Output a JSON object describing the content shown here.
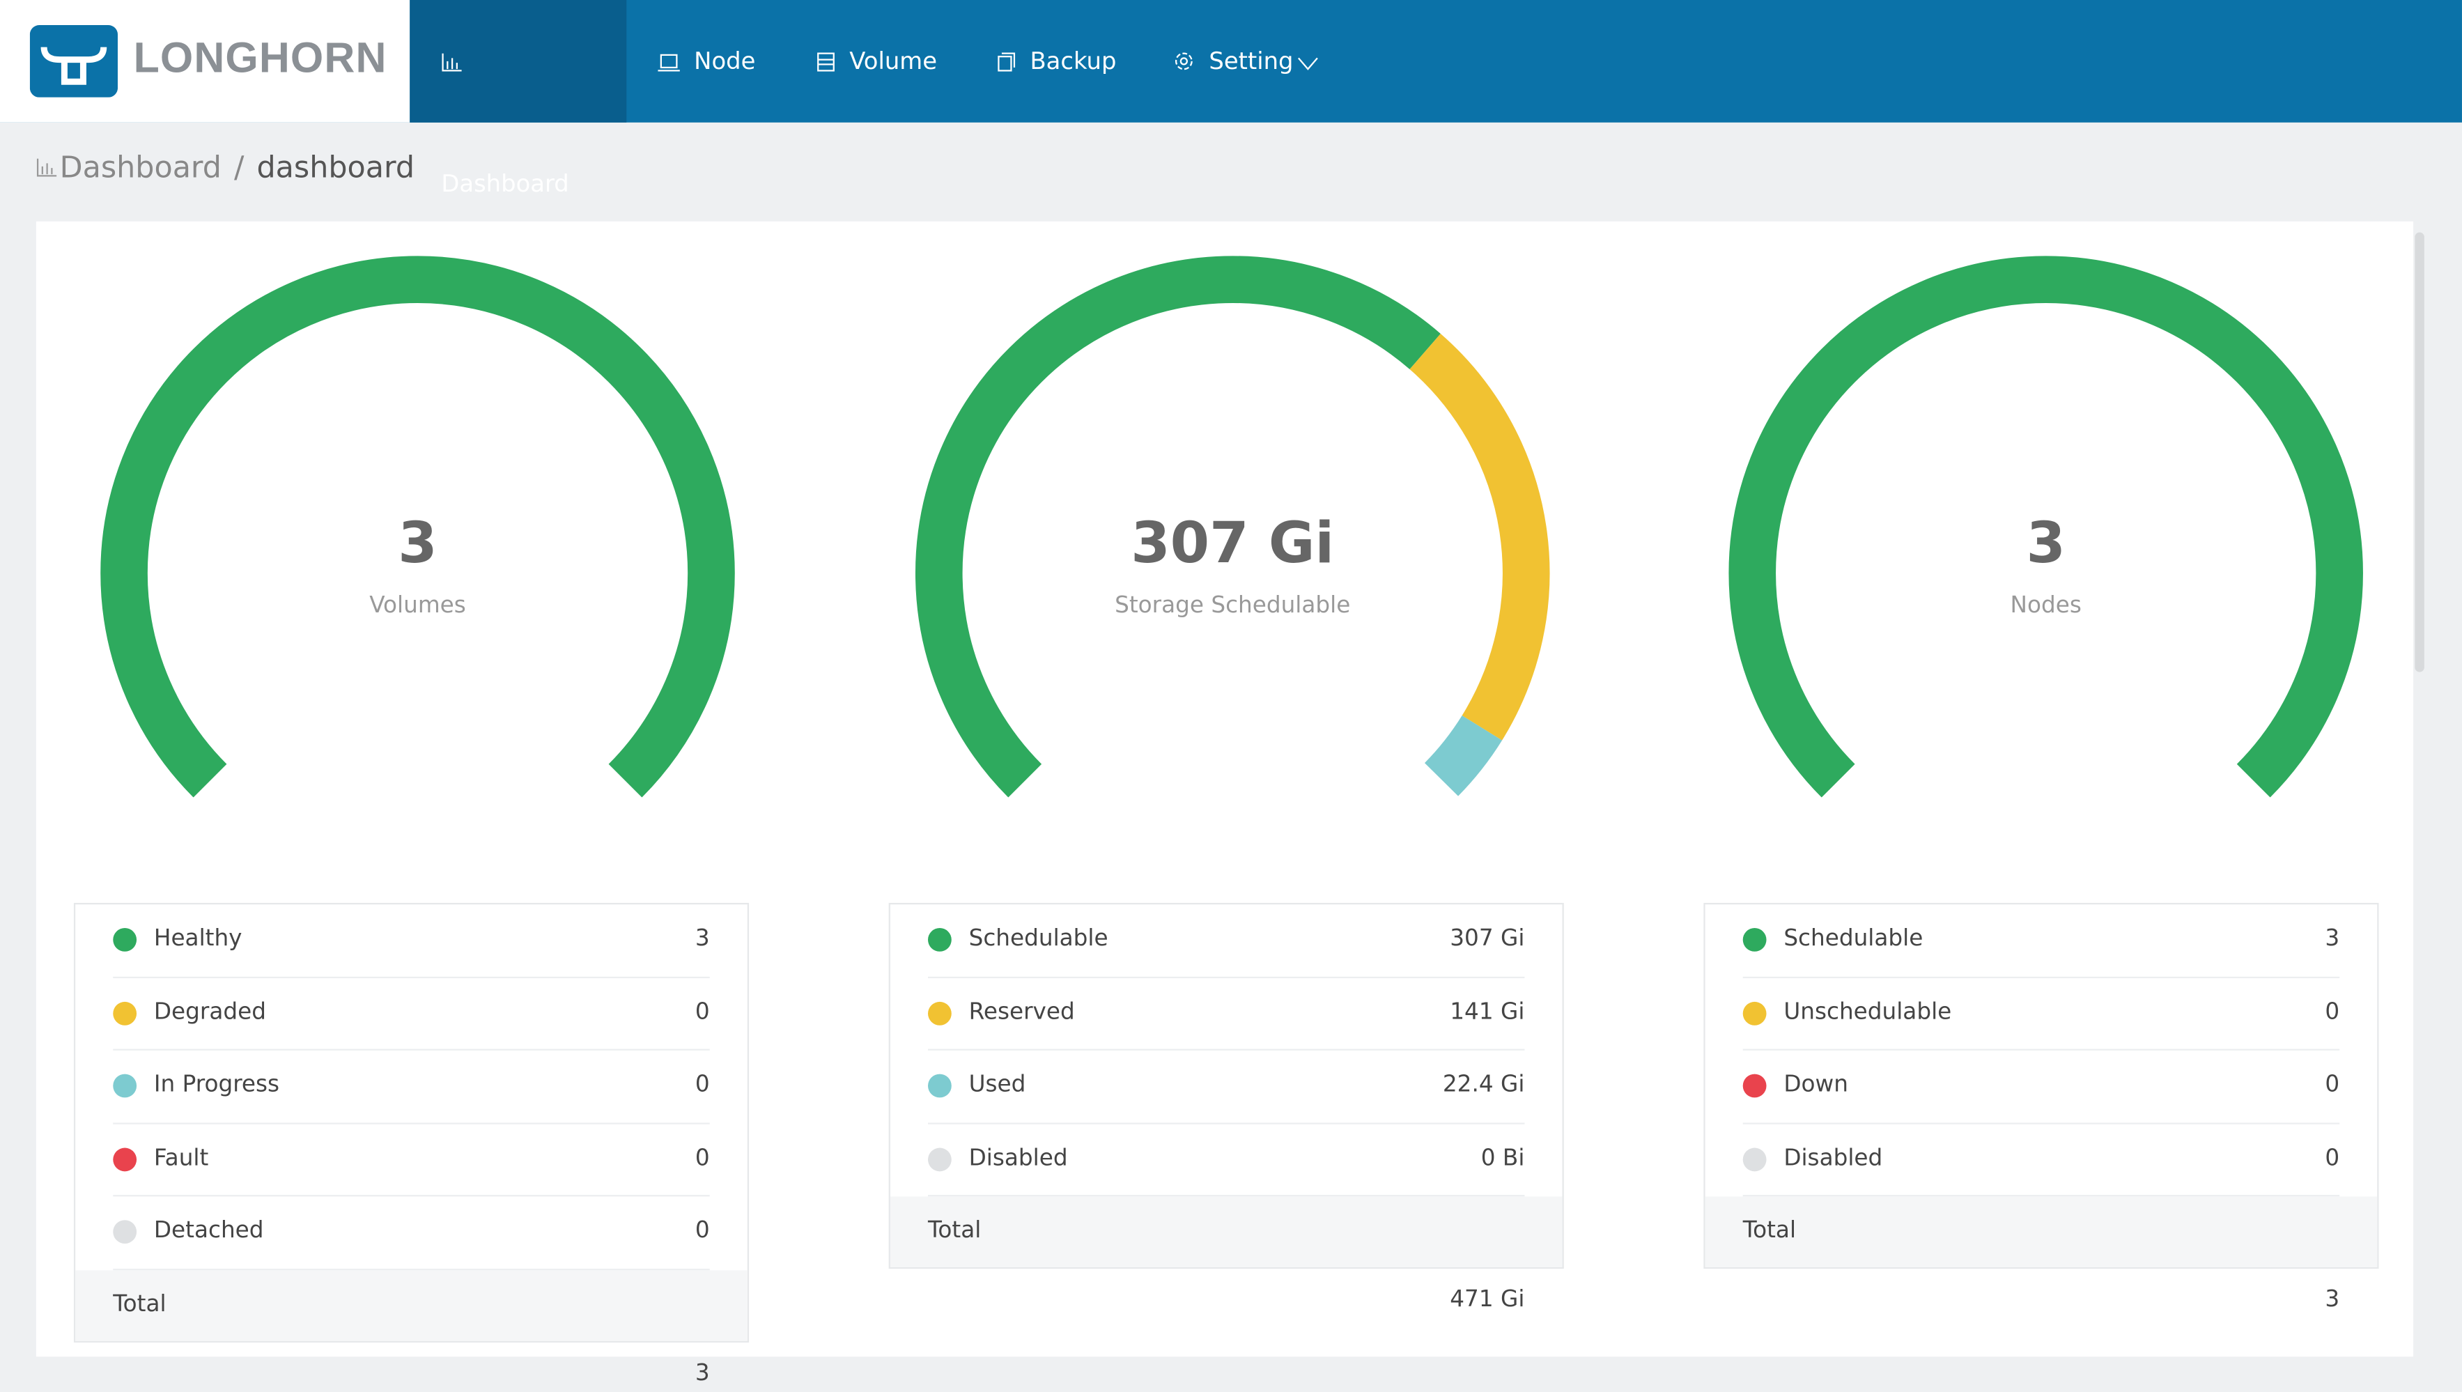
{
  "nav": {
    "brand": "LONGHORN",
    "items": [
      "Dashboard",
      "Node",
      "Volume",
      "Backup",
      "Setting"
    ]
  },
  "breadcrumb": [
    "Dashboard",
    "/",
    "dashboard"
  ],
  "panels": [
    {
      "value": "3",
      "label": "Volumes",
      "rows": [
        {
          "name": "Healthy",
          "value": "3",
          "color": "#2eaa5e"
        },
        {
          "name": "Degraded",
          "value": "0",
          "color": "#f1c232"
        },
        {
          "name": "In Progress",
          "value": "0",
          "color": "#7dcbd0"
        },
        {
          "name": "Fault",
          "value": "0",
          "color": "#e9434d"
        },
        {
          "name": "Detached",
          "value": "0",
          "color": "#dee0e2"
        }
      ],
      "total": {
        "name": "Total",
        "value": "3"
      }
    },
    {
      "value": "307 Gi",
      "label": "Storage Schedulable",
      "rows": [
        {
          "name": "Schedulable",
          "value": "307 Gi",
          "color": "#2eaa5e"
        },
        {
          "name": "Reserved",
          "value": "141 Gi",
          "color": "#f1c232"
        },
        {
          "name": "Used",
          "value": "22.4 Gi",
          "color": "#7dcbd0"
        },
        {
          "name": "Disabled",
          "value": "0 Bi",
          "color": "#dee0e2"
        }
      ],
      "total": {
        "name": "Total",
        "value": "471 Gi"
      }
    },
    {
      "value": "3",
      "label": "Nodes",
      "rows": [
        {
          "name": "Schedulable",
          "value": "3",
          "color": "#2eaa5e"
        },
        {
          "name": "Unschedulable",
          "value": "0",
          "color": "#f1c232"
        },
        {
          "name": "Down",
          "value": "0",
          "color": "#e9434d"
        },
        {
          "name": "Disabled",
          "value": "0",
          "color": "#dee0e2"
        }
      ],
      "total": {
        "name": "Total",
        "value": "3"
      }
    }
  ]
}
